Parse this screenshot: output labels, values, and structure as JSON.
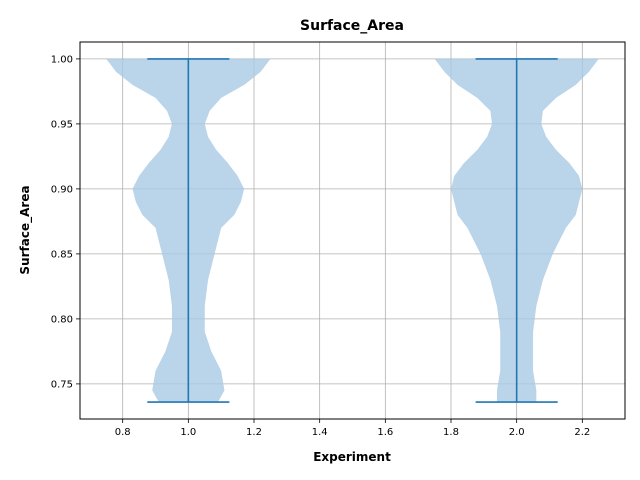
{
  "chart_data": {
    "type": "violin",
    "title": "Surface_Area",
    "xlabel": "Experiment",
    "ylabel": "Surface_Area",
    "xlim": [
      0.67,
      2.33
    ],
    "ylim": [
      0.723,
      1.013
    ],
    "xticks": [
      "0.8",
      "1.0",
      "1.2",
      "1.4",
      "1.6",
      "1.8",
      "2.0",
      "2.2"
    ],
    "yticks": [
      "0.75",
      "0.80",
      "0.85",
      "0.90",
      "0.95",
      "1.00"
    ],
    "grid": true,
    "colors": {
      "body": "#a9c9e3",
      "lines": "#1f77b4"
    },
    "violins": [
      {
        "position": 1,
        "min": 0.736,
        "max": 1.0,
        "profile": [
          [
            0.736,
            0.09
          ],
          [
            0.745,
            0.11
          ],
          [
            0.76,
            0.1
          ],
          [
            0.775,
            0.07
          ],
          [
            0.79,
            0.05
          ],
          [
            0.81,
            0.05
          ],
          [
            0.83,
            0.06
          ],
          [
            0.85,
            0.08
          ],
          [
            0.87,
            0.1
          ],
          [
            0.88,
            0.14
          ],
          [
            0.89,
            0.16
          ],
          [
            0.9,
            0.17
          ],
          [
            0.91,
            0.15
          ],
          [
            0.92,
            0.12
          ],
          [
            0.93,
            0.085
          ],
          [
            0.94,
            0.06
          ],
          [
            0.95,
            0.05
          ],
          [
            0.96,
            0.065
          ],
          [
            0.97,
            0.1
          ],
          [
            0.98,
            0.17
          ],
          [
            0.99,
            0.22
          ],
          [
            1.0,
            0.25
          ]
        ]
      },
      {
        "position": 2,
        "min": 0.736,
        "max": 1.0,
        "profile": [
          [
            0.736,
            0.06
          ],
          [
            0.745,
            0.06
          ],
          [
            0.76,
            0.05
          ],
          [
            0.775,
            0.05
          ],
          [
            0.79,
            0.05
          ],
          [
            0.81,
            0.06
          ],
          [
            0.83,
            0.08
          ],
          [
            0.85,
            0.11
          ],
          [
            0.87,
            0.15
          ],
          [
            0.88,
            0.18
          ],
          [
            0.89,
            0.19
          ],
          [
            0.9,
            0.2
          ],
          [
            0.91,
            0.19
          ],
          [
            0.92,
            0.16
          ],
          [
            0.93,
            0.12
          ],
          [
            0.94,
            0.09
          ],
          [
            0.95,
            0.075
          ],
          [
            0.96,
            0.08
          ],
          [
            0.97,
            0.12
          ],
          [
            0.98,
            0.18
          ],
          [
            0.99,
            0.22
          ],
          [
            1.0,
            0.25
          ]
        ]
      }
    ]
  }
}
